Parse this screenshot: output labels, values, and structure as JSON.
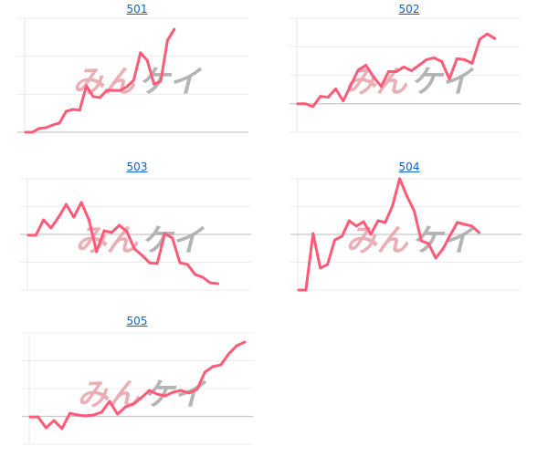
{
  "watermark": {
    "part1": "みん",
    "part2": "ケイ",
    "part1_color": "#e8a0a8",
    "part2_color": "#a8a8a8"
  },
  "line_color": "#ff5a78",
  "chart_data": [
    {
      "type": "line",
      "title": "501",
      "ylim": [
        0,
        3
      ],
      "baseline": 0,
      "values": [
        0,
        0,
        0.1,
        0.12,
        0.19,
        0.24,
        0.55,
        0.6,
        0.58,
        1.22,
        0.94,
        0.91,
        1.1,
        1.1,
        1.1,
        1.2,
        1.37,
        2.09,
        1.89,
        1.27,
        1.34,
        2.42,
        2.71
      ]
    },
    {
      "type": "line",
      "title": "502",
      "ylim": [
        0,
        4
      ],
      "baseline": 1,
      "values": [
        1,
        1,
        0.9,
        1.26,
        1.23,
        1.52,
        1.1,
        1.65,
        2.19,
        2.35,
        1.94,
        1.61,
        2.13,
        2.13,
        2.29,
        2.16,
        2.35,
        2.55,
        2.61,
        2.48,
        1.87,
        2.58,
        2.55,
        2.42,
        3.26,
        3.45,
        3.29
      ]
    },
    {
      "type": "line",
      "title": "503",
      "ylim": [
        0,
        4
      ],
      "baseline": 2,
      "values": [
        1.97,
        1.97,
        2.52,
        2.23,
        2.62,
        3.08,
        2.62,
        3.15,
        2.52,
        1.38,
        2.13,
        2.07,
        2.33,
        2.1,
        1.48,
        1.25,
        0.98,
        0.95,
        2.03,
        1.87,
        0.98,
        0.92,
        0.56,
        0.46,
        0.26,
        0.23
      ]
    },
    {
      "type": "line",
      "title": "504",
      "ylim": [
        0,
        4
      ],
      "baseline": 2,
      "values": [
        0,
        0,
        2.03,
        0.79,
        0.92,
        1.8,
        1.93,
        2.49,
        2.3,
        2.46,
        2.0,
        2.49,
        2.43,
        3.02,
        4.0,
        3.38,
        2.85,
        1.77,
        1.67,
        1.15,
        1.48,
        1.97,
        2.43,
        2.36,
        2.3,
        2.07
      ]
    },
    {
      "type": "line",
      "title": "505",
      "ylim": [
        0,
        4
      ],
      "baseline": 1,
      "values": [
        0.98,
        0.98,
        0.59,
        0.85,
        0.56,
        1.11,
        1.05,
        1.02,
        1.05,
        1.15,
        1.54,
        1.08,
        1.34,
        1.44,
        1.67,
        1.93,
        1.8,
        1.74,
        1.87,
        1.93,
        1.84,
        1.97,
        2.59,
        2.79,
        2.85,
        3.25,
        3.54,
        3.67
      ]
    }
  ]
}
